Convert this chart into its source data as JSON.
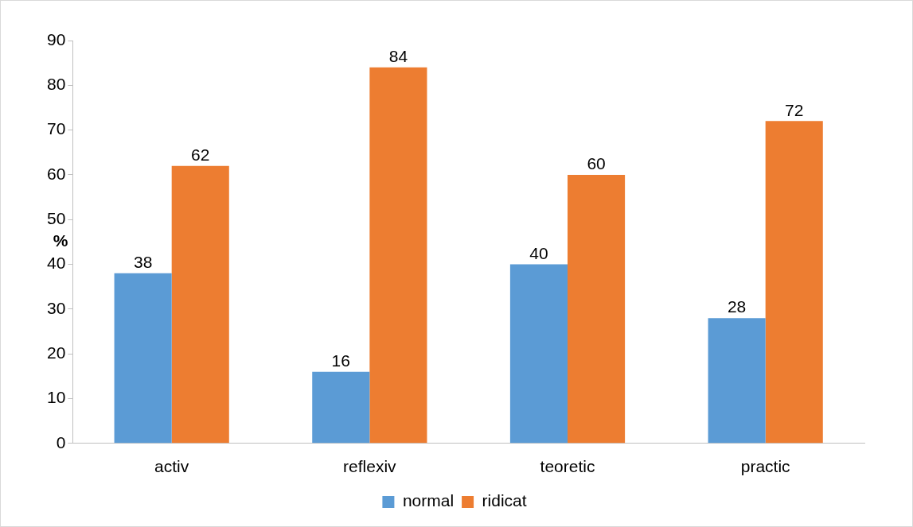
{
  "chart_data": {
    "type": "bar",
    "ylabel": "%",
    "categories": [
      "activ",
      "reflexiv",
      "teoretic",
      "practic"
    ],
    "series": [
      {
        "name": "normal",
        "color": "#5b9bd5",
        "values": [
          38,
          16,
          40,
          28
        ]
      },
      {
        "name": "ridicat",
        "color": "#ed7d31",
        "values": [
          62,
          84,
          60,
          72
        ]
      }
    ],
    "ylim": [
      0,
      90
    ],
    "yticks": [
      0,
      10,
      20,
      30,
      40,
      50,
      60,
      70,
      80,
      90
    ],
    "grid": false,
    "legend": "bottom",
    "data_labels": true
  }
}
